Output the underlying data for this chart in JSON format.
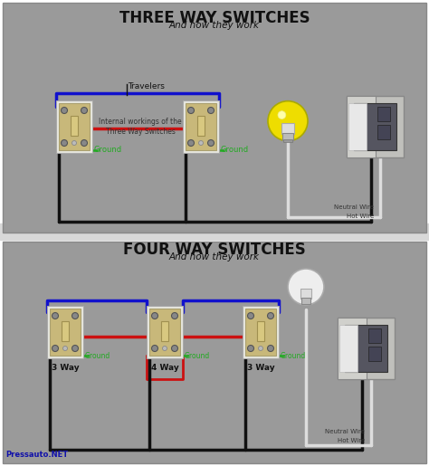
{
  "title1": "THREE WAY SWITCHES",
  "subtitle1": "And how they work",
  "title2": "FOUR WAY SWITCHES",
  "subtitle2": "And how they work",
  "bg_outer": "#ffffff",
  "bg_panel": "#999999",
  "bg_divider": "#cccccc",
  "blue": "#1111cc",
  "red": "#cc1111",
  "black": "#111111",
  "white_wire": "#dddddd",
  "green_wire": "#22aa22",
  "switch_tan": "#c8b87a",
  "switch_light": "#ddd5aa",
  "switch_white": "#eeeeee",
  "panel_gray": "#aaaaaa",
  "panel_dark": "#666666",
  "bulb_yellow": "#eedd00",
  "bulb_outline": "#aaaa00",
  "watermark": "Pressauto.NET",
  "label_ground": "Ground",
  "label_neutral": "Neutral Wire",
  "label_hot": "Hot Wire",
  "label_travelers": "Travelers",
  "label_internal": "Internal workings of the\nThree Way Switches",
  "label_3way": "3 Way",
  "label_4way": "4 Way"
}
